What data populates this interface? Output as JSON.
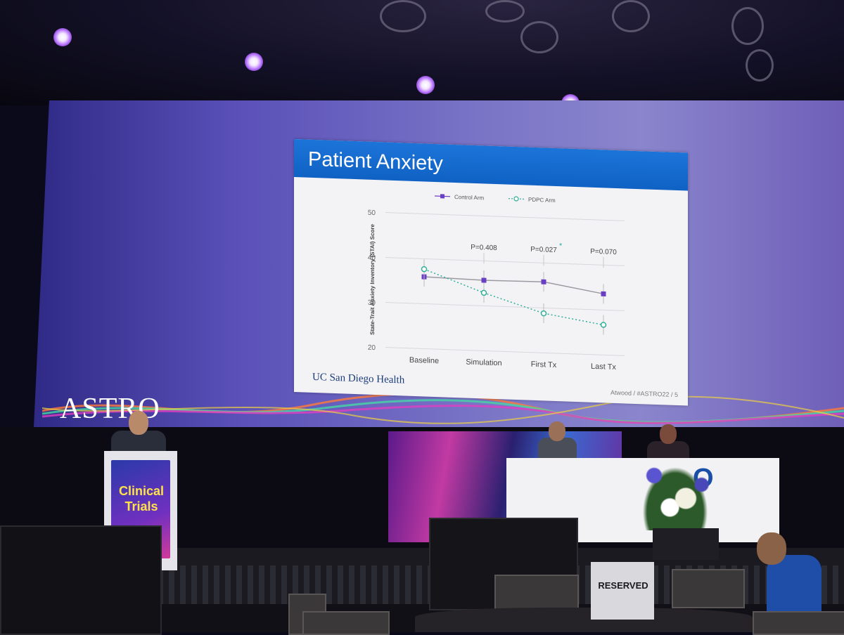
{
  "slide": {
    "title": "Patient Anxiety",
    "footer_logo": "UC San Diego Health",
    "footer_credit": "Atwood / #ASTRO22 / 5"
  },
  "conference_logo": "ASTRO",
  "podium_label": "Clinical Trials",
  "reserved_sign": "RESERVED",
  "table_logo": "O",
  "chart_data": {
    "type": "line",
    "categories": [
      "Baseline",
      "Simulation",
      "First Tx",
      "Last Tx"
    ],
    "ylabel": "State-Trait Anxiety Inventory (STAI) Score",
    "ylim": [
      20,
      50
    ],
    "yticks": [
      20,
      30,
      40,
      50
    ],
    "series": [
      {
        "name": "Control Arm",
        "values": [
          36,
          35.7,
          35.8,
          33.6
        ],
        "color": "#6a3fc4",
        "marker": "square",
        "style": "solid"
      },
      {
        "name": "PDPC Arm",
        "values": [
          37.7,
          32.9,
          28.8,
          26.7
        ],
        "color": "#2fae9a",
        "marker": "circle",
        "style": "dotted"
      }
    ],
    "annotations": [
      {
        "category": "Simulation",
        "text": "P=0.408"
      },
      {
        "category": "First Tx",
        "text": "P=0.027",
        "star": "*"
      },
      {
        "category": "Last Tx",
        "text": "P=0.070"
      }
    ]
  }
}
